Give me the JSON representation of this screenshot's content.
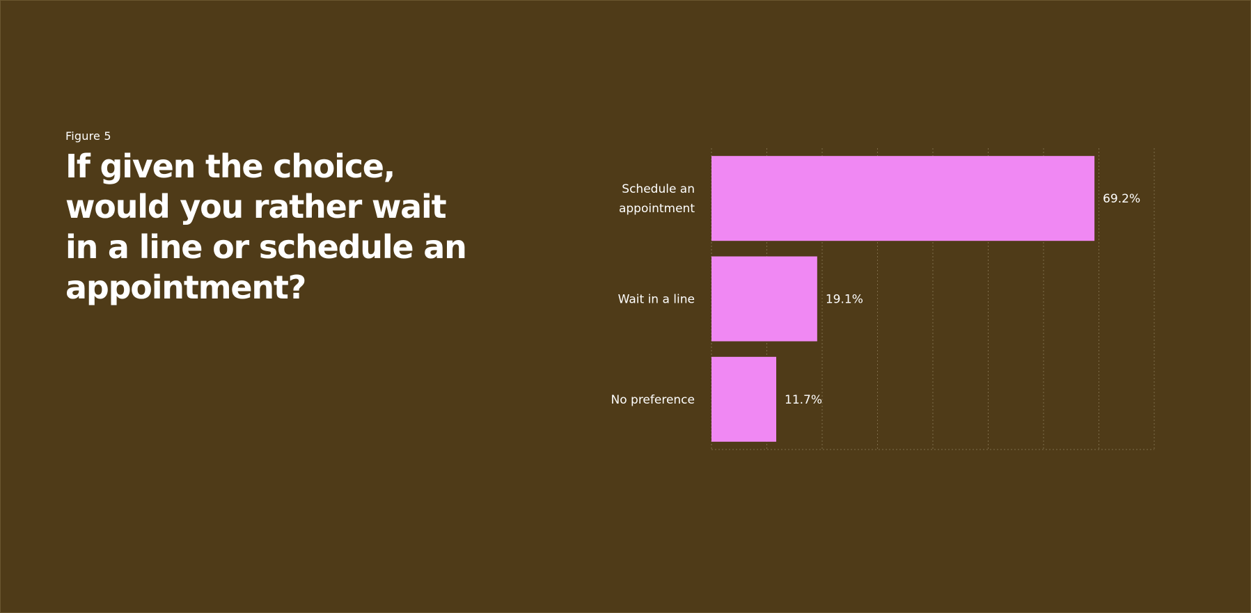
{
  "figure": {
    "label": "Figure 5",
    "title": "If given the choice, would you rather wait in a line or schedule an appointment?"
  },
  "colors": {
    "background": "#4f3b18",
    "bar": "#f088f3",
    "grid": "#7e6c4a",
    "text": "#ffffff"
  },
  "chart_data": {
    "type": "bar",
    "orientation": "horizontal",
    "categories": [
      "Schedule an appointment",
      "Wait in a line",
      "No preference"
    ],
    "category_lines": [
      [
        "Schedule an",
        "appointment"
      ],
      [
        "Wait in a line"
      ],
      [
        "No preference"
      ]
    ],
    "values": [
      69.2,
      19.1,
      11.7
    ],
    "value_labels": [
      "69.2%",
      "19.1%",
      "11.7%"
    ],
    "xlim": [
      0,
      80
    ],
    "grid": true,
    "legend": "none"
  }
}
